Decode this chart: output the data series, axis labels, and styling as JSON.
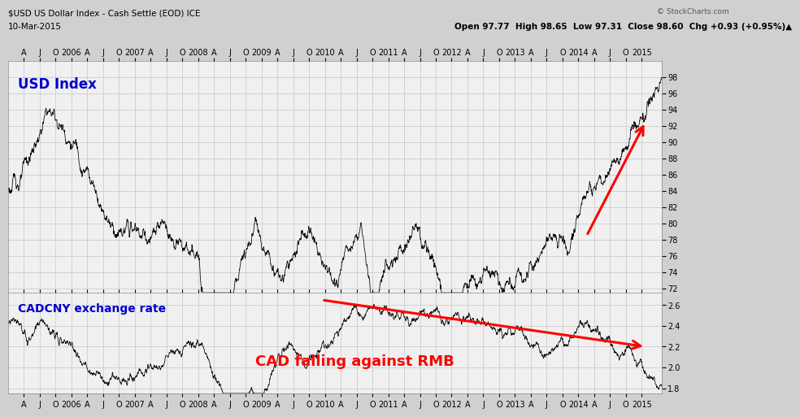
{
  "title_line1": "$USD US Dollar Index - Cash Settle (EOD) ICE",
  "title_line2": "10-Mar-2015",
  "title_right": "© StockCharts.com",
  "ohlc": "Open 97.77  High 98.65  Low 97.31  Close 98.60  Chg +0.93 (+0.95%)▲",
  "usd_label": "USD Index",
  "cadcny_label": "CADCNY exchange rate",
  "cadcny_annotation": "CAD falling against RMB",
  "usd_ylim": [
    71.5,
    100
  ],
  "usd_yticks": [
    72,
    74,
    76,
    78,
    80,
    82,
    84,
    86,
    88,
    90,
    92,
    94,
    96,
    98
  ],
  "cadcny_ylim": [
    1.75,
    2.72
  ],
  "cadcny_yticks": [
    1.8,
    2.0,
    2.2,
    2.4,
    2.6
  ],
  "bg_color": "#d0d0d0",
  "plot_bg_color": "#f0f0f0",
  "grid_color": "#bbbbbb",
  "line_color": "#000000"
}
